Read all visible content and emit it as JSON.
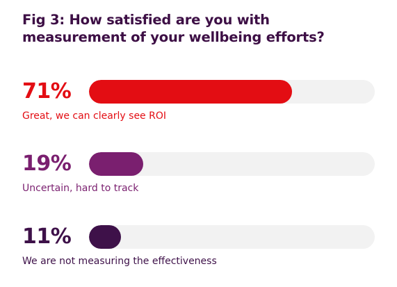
{
  "title": "Fig 3: How satisfied are you with measurement of your wellbeing efforts?",
  "colors": {
    "title": "#3d0f45",
    "track": "#f2f2f2"
  },
  "chart_data": {
    "type": "bar",
    "title": "Fig 3: How satisfied are you with measurement of your wellbeing efforts?",
    "categories": [
      "Great, we can clearly see ROI",
      "Uncertain, hard to track",
      "We are not measuring the effectiveness"
    ],
    "values": [
      71,
      19,
      11
    ],
    "value_labels": [
      "71%",
      "19%",
      "11%"
    ],
    "bar_colors": [
      "#e30d13",
      "#7a1f6f",
      "#3e1149"
    ],
    "label_colors": [
      "#e30d13",
      "#7a1f6f",
      "#3e1149"
    ],
    "xlim": [
      0,
      100
    ],
    "orientation": "horizontal",
    "grid": false,
    "legend": "none"
  }
}
